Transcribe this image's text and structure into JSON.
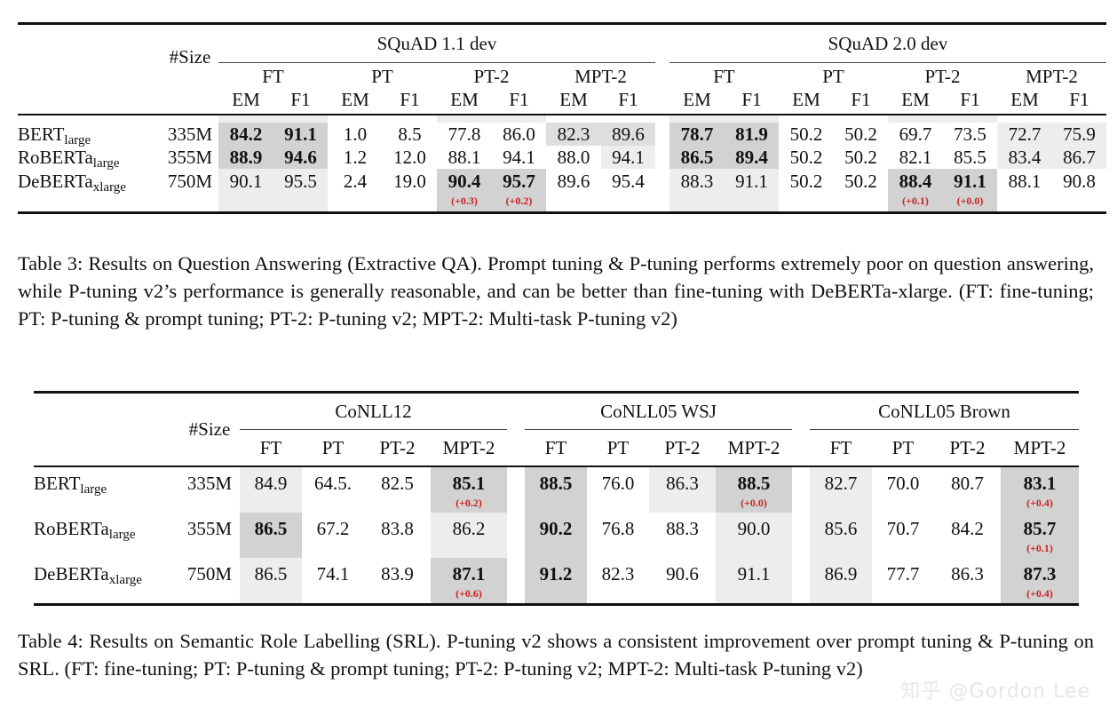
{
  "table3": {
    "size_header": "#Size",
    "groups": [
      "SQuAD 1.1 dev",
      "SQuAD 2.0 dev"
    ],
    "methods": [
      "FT",
      "PT",
      "PT-2",
      "MPT-2"
    ],
    "metrics": [
      "EM",
      "F1"
    ],
    "rows": [
      {
        "model": "BERT",
        "sub": "large",
        "size": "335M",
        "cells": [
          "84.2",
          "91.1",
          "1.0",
          "8.5",
          "77.8",
          "86.0",
          "82.3",
          "89.6",
          "78.7",
          "81.9",
          "50.2",
          "50.2",
          "69.7",
          "73.5",
          "72.7",
          "75.9"
        ],
        "deltas": [
          "",
          "",
          "",
          "",
          "",
          "",
          "",
          "",
          "",
          "",
          "",
          "",
          "",
          "",
          "",
          ""
        ]
      },
      {
        "model": "RoBERTa",
        "sub": "large",
        "size": "355M",
        "cells": [
          "88.9",
          "94.6",
          "1.2",
          "12.0",
          "88.1",
          "94.1",
          "88.0",
          "94.1",
          "86.5",
          "89.4",
          "50.2",
          "50.2",
          "82.1",
          "85.5",
          "83.4",
          "86.7"
        ],
        "deltas": [
          "",
          "",
          "",
          "",
          "",
          "",
          "",
          "",
          "",
          "",
          "",
          "",
          "",
          "",
          "",
          ""
        ]
      },
      {
        "model": "DeBERTa",
        "sub": "xlarge",
        "size": "750M",
        "cells": [
          "90.1",
          "95.5",
          "2.4",
          "19.0",
          "90.4",
          "95.7",
          "89.6",
          "95.4",
          "88.3",
          "91.1",
          "50.2",
          "50.2",
          "88.4",
          "91.1",
          "88.1",
          "90.8"
        ],
        "deltas": [
          "",
          "",
          "",
          "",
          "(+0.3)",
          "(+0.2)",
          "",
          "",
          "",
          "",
          "",
          "",
          "(+0.1)",
          "(+0.0)",
          "",
          ""
        ]
      }
    ],
    "caption": "Table 3: Results on Question Answering (Extractive QA). Prompt tuning & P-tuning performs extremely poor on question answering, while P-tuning v2’s performance is generally reasonable, and can be better than fine-tuning with DeBERTa-xlarge. (FT: fine-tuning; PT: P-tuning & prompt tuning; PT-2: P-tuning v2; MPT-2: Multi-task P-tuning v2)"
  },
  "table4": {
    "size_header": "#Size",
    "groups": [
      "CoNLL12",
      "CoNLL05 WSJ",
      "CoNLL05 Brown"
    ],
    "methods": [
      "FT",
      "PT",
      "PT-2",
      "MPT-2"
    ],
    "rows": [
      {
        "model": "BERT",
        "sub": "large",
        "size": "335M",
        "cells": [
          "84.9",
          "64.5.",
          "82.5",
          "85.1",
          "88.5",
          "76.0",
          "86.3",
          "88.5",
          "82.7",
          "70.0",
          "80.7",
          "83.1"
        ],
        "deltas": [
          "",
          "",
          "",
          "(+0.2)",
          "",
          "",
          "",
          "(+0.0)",
          "",
          "",
          "",
          "(+0.4)"
        ]
      },
      {
        "model": "RoBERTa",
        "sub": "large",
        "size": "355M",
        "cells": [
          "86.5",
          "67.2",
          "83.8",
          "86.2",
          "90.2",
          "76.8",
          "88.3",
          "90.0",
          "85.6",
          "70.7",
          "84.2",
          "85.7"
        ],
        "deltas": [
          "",
          "",
          "",
          "",
          "",
          "",
          "",
          "",
          "",
          "",
          "",
          "(+0.1)"
        ]
      },
      {
        "model": "DeBERTa",
        "sub": "xlarge",
        "size": "750M",
        "cells": [
          "86.5",
          "74.1",
          "83.9",
          "87.1",
          "91.2",
          "82.3",
          "90.6",
          "91.1",
          "86.9",
          "77.7",
          "86.3",
          "87.3"
        ],
        "deltas": [
          "",
          "",
          "",
          "(+0.6)",
          "",
          "",
          "",
          "",
          "",
          "",
          "",
          "(+0.4)"
        ]
      }
    ],
    "caption": "Table 4: Results on Semantic Role Labelling (SRL). P-tuning v2 shows a consistent improvement over prompt tuning & P-tuning on SRL. (FT: fine-tuning; PT: P-tuning & prompt tuning; PT-2: P-tuning v2; MPT-2: Multi-task P-tuning v2)"
  },
  "watermark": "知乎 @Gordon Lee"
}
